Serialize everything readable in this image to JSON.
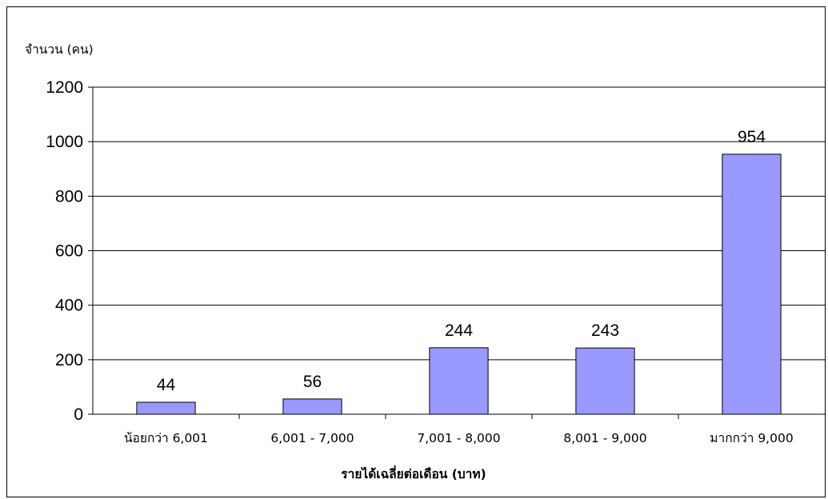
{
  "chart_data": {
    "type": "bar",
    "title": "",
    "ylabel": "จำนวน (คน)",
    "xlabel": "รายได้เฉลี่ยต่อเดือน (บาท)",
    "categories": [
      "น้อยกว่า 6,001",
      "6,001 - 7,000",
      "7,001 - 8,000",
      "8,001 - 9,000",
      "มากกว่า 9,000"
    ],
    "values": [
      44,
      56,
      244,
      243,
      954
    ],
    "data_labels": [
      "44",
      "56",
      "244",
      "243",
      "954"
    ],
    "ylim": [
      0,
      1200
    ],
    "yticks": [
      0,
      200,
      400,
      600,
      800,
      1000,
      1200
    ],
    "ytick_labels": [
      "0",
      "200",
      "400",
      "600",
      "800",
      "1000",
      "1200"
    ],
    "grid": "horizontal",
    "legend": "none",
    "colors": {
      "bar_fill": "#9999ff",
      "bar_stroke": "#000000",
      "grid": "#000000",
      "frame": "#000000"
    }
  }
}
